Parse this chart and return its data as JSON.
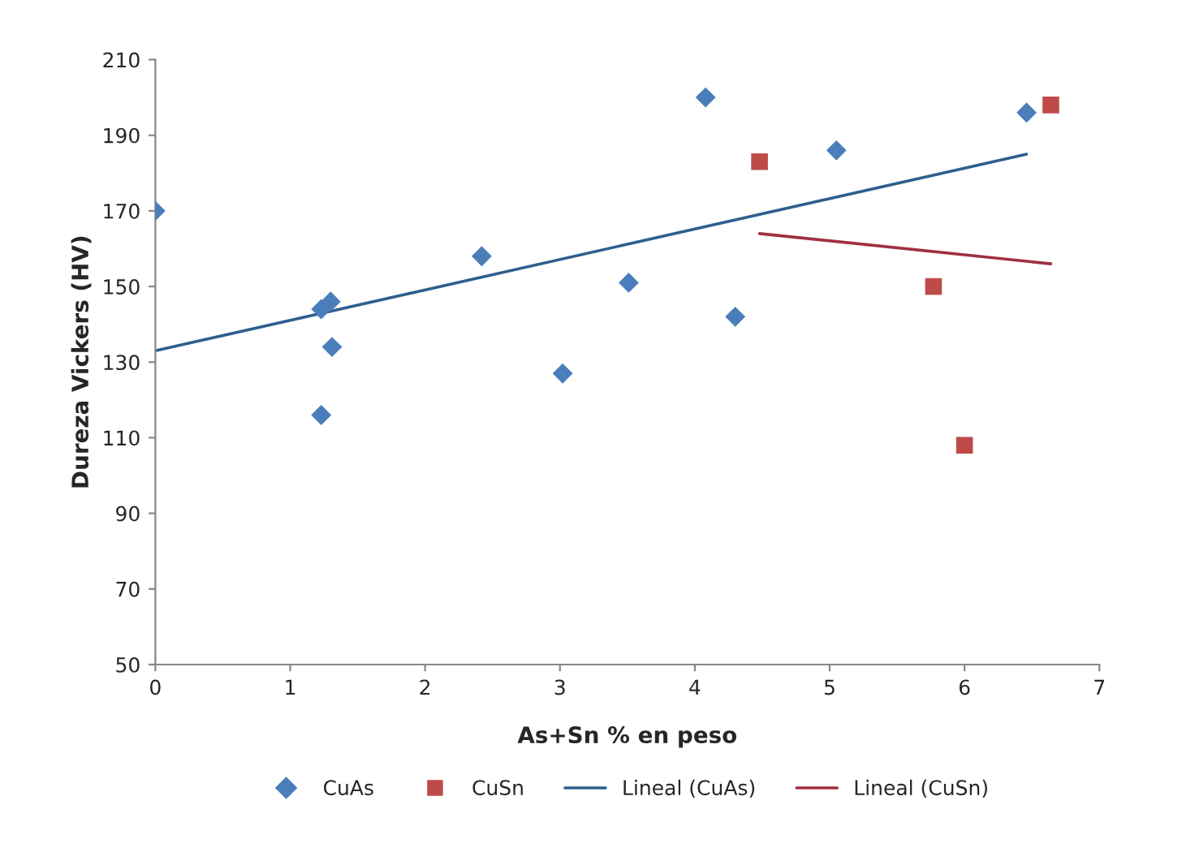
{
  "chart_data": {
    "type": "scatter",
    "xlabel": "As+Sn % en peso",
    "ylabel": "Dureza Vickers (HV)",
    "xlim": [
      0,
      7
    ],
    "xticks": [
      0,
      1,
      2,
      3,
      4,
      5,
      6,
      7
    ],
    "ylim": [
      50,
      210
    ],
    "yticks": [
      50,
      70,
      90,
      110,
      130,
      150,
      170,
      190,
      210
    ],
    "grid": false,
    "legend": "bottom",
    "series": [
      {
        "name": "CuAs",
        "marker": "diamond",
        "color": "#4a7ebb",
        "x": [
          0,
          1.23,
          1.3,
          1.31,
          1.23,
          2.42,
          3.02,
          3.51,
          4.08,
          4.3,
          5.05,
          6.46
        ],
        "values": [
          170,
          144,
          146,
          134,
          116,
          158,
          127,
          151,
          200,
          142,
          186,
          196
        ]
      },
      {
        "name": "CuSn",
        "marker": "square",
        "color": "#be4b48",
        "x": [
          4.48,
          5.77,
          6.0,
          6.64
        ],
        "values": [
          183,
          150,
          108,
          198
        ]
      },
      {
        "name": "Lineal (CuAs)",
        "type": "line",
        "marker": "none",
        "line_style": "solid",
        "color": "#2e5f8f",
        "x": [
          0,
          6.46
        ],
        "values": [
          133,
          185
        ]
      },
      {
        "name": "Lineal (CuSn)",
        "type": "line",
        "marker": "none",
        "line_style": "solid",
        "color": "#a03040",
        "x": [
          4.48,
          6.64
        ],
        "values": [
          164,
          156
        ]
      }
    ]
  }
}
